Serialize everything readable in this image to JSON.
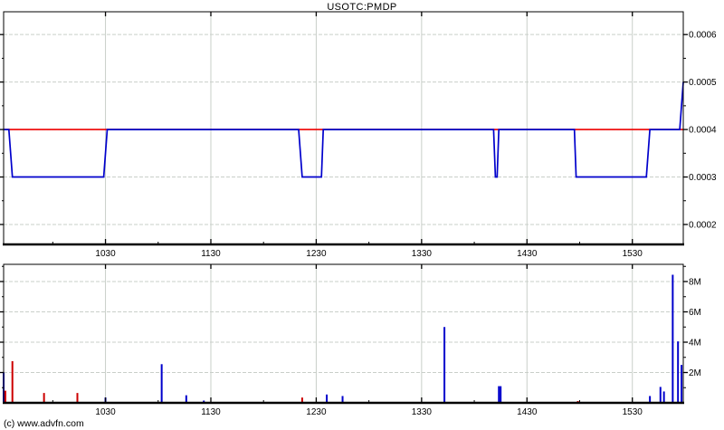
{
  "header": {
    "title": "USOTC:PMDP"
  },
  "footer": {
    "copyright": "(c) www.advfn.com"
  },
  "colors": {
    "background": "#ffffff",
    "axis": "#000000",
    "grid": "#c9cfc9",
    "price_line": "#0000cc",
    "reference_line": "#ee0000",
    "up_volume": "#0000cc",
    "down_volume": "#cc0000"
  },
  "chart_data": [
    {
      "type": "line",
      "name": "price",
      "title": "USOTC:PMDP",
      "grid": true,
      "legend": "none",
      "x_axis": {
        "tick_labels": [
          "1030",
          "1130",
          "1230",
          "1330",
          "1430",
          "1530"
        ],
        "tick_values": [
          1030,
          1130,
          1230,
          1330,
          1430,
          1530
        ],
        "minor_tick_values": [
          1000,
          1100,
          1200,
          1300,
          1400,
          1500
        ],
        "range_hhmm": [
          932,
          1559
        ]
      },
      "y_axis": {
        "tick_labels": [
          "0.0006",
          "0.0005",
          "0.0004",
          "0.0003",
          "0.0002"
        ],
        "tick_values": [
          0.0006,
          0.0005,
          0.0004,
          0.0003,
          0.0002
        ],
        "minor_tick_values": [
          0.00055,
          0.00045,
          0.00035,
          0.00025
        ],
        "range": [
          0.000158,
          0.000648
        ]
      },
      "reference_line": {
        "value": 0.0004,
        "color_key": "reference_line"
      },
      "series": [
        {
          "name": "price",
          "color_key": "price_line",
          "points": [
            [
              932,
              0.0004
            ],
            [
              935,
              0.0004
            ],
            [
              937,
              0.0003
            ],
            [
              1029,
              0.0003
            ],
            [
              1031,
              0.0004
            ],
            [
              1220,
              0.0004
            ],
            [
              1222,
              0.0003
            ],
            [
              1233,
              0.0003
            ],
            [
              1234,
              0.0004
            ],
            [
              1411,
              0.0004
            ],
            [
              1412,
              0.0003
            ],
            [
              1413,
              0.0003
            ],
            [
              1414,
              0.0004
            ],
            [
              1457,
              0.0004
            ],
            [
              1458,
              0.0003
            ],
            [
              1538,
              0.0003
            ],
            [
              1540,
              0.0004
            ],
            [
              1557,
              0.0004
            ],
            [
              1559,
              0.0005
            ]
          ]
        }
      ]
    },
    {
      "type": "bar",
      "name": "volume",
      "grid": true,
      "legend": "none",
      "x_axis": {
        "tick_labels": [
          "1030",
          "1130",
          "1230",
          "1330",
          "1430",
          "1530"
        ],
        "tick_values": [
          1030,
          1130,
          1230,
          1330,
          1430,
          1530
        ],
        "minor_tick_values": [
          1000,
          1100,
          1200,
          1300,
          1400,
          1500
        ],
        "range_hhmm": [
          932,
          1559
        ]
      },
      "y_axis": {
        "tick_labels": [
          "2M",
          "4M",
          "6M",
          "8M"
        ],
        "tick_values": [
          2000000,
          4000000,
          6000000,
          8000000
        ],
        "minor_tick_values": [
          1000000,
          3000000,
          5000000,
          7000000,
          9000000
        ],
        "range": [
          0,
          9134000
        ]
      },
      "bars": [
        {
          "t": 932,
          "v": 2000000,
          "dir": "up"
        },
        {
          "t": 933,
          "v": 800000,
          "dir": "down"
        },
        {
          "t": 937,
          "v": 2750000,
          "dir": "down"
        },
        {
          "t": 955,
          "v": 650000,
          "dir": "down"
        },
        {
          "t": 1014,
          "v": 650000,
          "dir": "down"
        },
        {
          "t": 1030,
          "v": 350000,
          "dir": "up"
        },
        {
          "t": 1102,
          "v": 2550000,
          "dir": "up"
        },
        {
          "t": 1116,
          "v": 500000,
          "dir": "up"
        },
        {
          "t": 1126,
          "v": 150000,
          "dir": "up"
        },
        {
          "t": 1222,
          "v": 350000,
          "dir": "down"
        },
        {
          "t": 1236,
          "v": 550000,
          "dir": "up"
        },
        {
          "t": 1245,
          "v": 450000,
          "dir": "up"
        },
        {
          "t": 1343,
          "v": 5000000,
          "dir": "up"
        },
        {
          "t": 1414,
          "v": 1100000,
          "dir": "up"
        },
        {
          "t": 1415,
          "v": 1100000,
          "dir": "up"
        },
        {
          "t": 1459,
          "v": 120000,
          "dir": "down"
        },
        {
          "t": 1540,
          "v": 450000,
          "dir": "up"
        },
        {
          "t": 1546,
          "v": 1050000,
          "dir": "up"
        },
        {
          "t": 1548,
          "v": 750000,
          "dir": "up"
        },
        {
          "t": 1553,
          "v": 8450000,
          "dir": "up"
        },
        {
          "t": 1556,
          "v": 4050000,
          "dir": "up"
        },
        {
          "t": 1558,
          "v": 2500000,
          "dir": "up"
        }
      ]
    }
  ]
}
